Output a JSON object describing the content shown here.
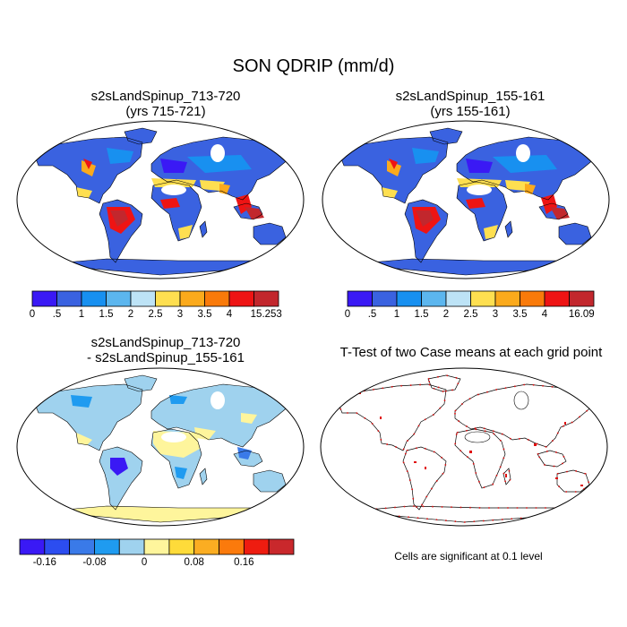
{
  "main_title": "SON QDRIP (mm/d)",
  "panels": [
    {
      "id": "case1",
      "title1": "s2sLandSpinup_713-720",
      "title2": "(yrs 715-721)"
    },
    {
      "id": "case2",
      "title1": "s2sLandSpinup_155-161",
      "title2": "(yrs 155-161)"
    },
    {
      "id": "diff",
      "title1": "s2sLandSpinup_713-720",
      "title2": "- s2sLandSpinup_155-161"
    },
    {
      "id": "ttest",
      "title1": "T-Test of two Case means at each grid point",
      "title2": ""
    }
  ],
  "colorbars": {
    "case1": {
      "colors": [
        "#3a19f5",
        "#3a62e0",
        "#1890f0",
        "#5cb6ee",
        "#bde3f6",
        "#fedf50",
        "#fbaa1c",
        "#f97a0a",
        "#ee1414",
        "#c2272d"
      ],
      "labels": [
        "0",
        ".5",
        "1",
        "1.5",
        "2",
        "2.5",
        "3",
        "3.5",
        "4",
        "15.253"
      ]
    },
    "case2": {
      "colors": [
        "#3a19f5",
        "#3a62e0",
        "#1890f0",
        "#5cb6ee",
        "#bde3f6",
        "#fedf50",
        "#fbaa1c",
        "#f97a0a",
        "#ee1414",
        "#c2272d"
      ],
      "labels": [
        "0",
        ".5",
        "1",
        "1.5",
        "2",
        "2.5",
        "3",
        "3.5",
        "4",
        "16.09"
      ]
    },
    "diff": {
      "colors": [
        "#3a19f5",
        "#2c4df0",
        "#3a7ae8",
        "#1f9bf0",
        "#9fd2ee",
        "#fef59c",
        "#fedb3a",
        "#fbad22",
        "#fb7a0c",
        "#ee1c10",
        "#c9282c"
      ],
      "labels": [
        "-0.16",
        "-0.08",
        "0",
        "0.08",
        "0.16"
      ]
    }
  },
  "ttest_note": "Cells are significant at 0.1 level"
}
